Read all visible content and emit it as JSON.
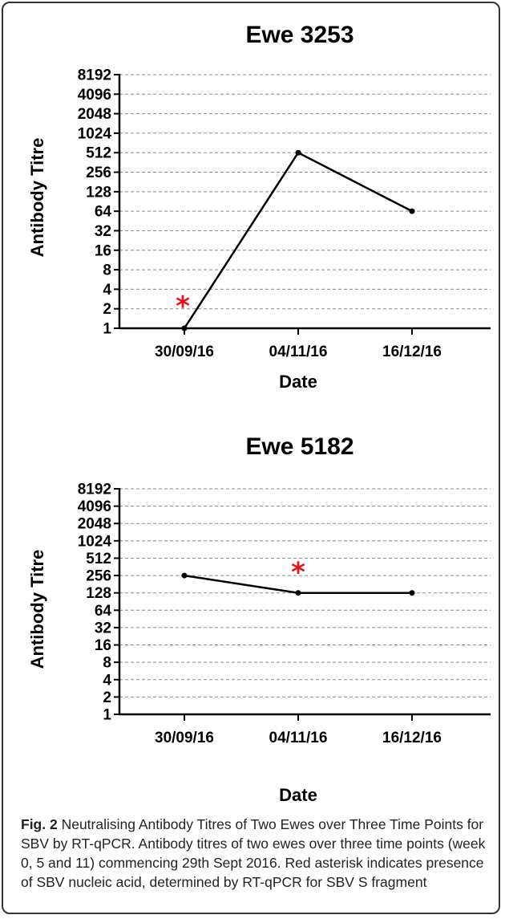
{
  "chart_data": [
    {
      "type": "line",
      "title": "Ewe 3253",
      "xlabel": "Date",
      "ylabel": "Antibody Titre",
      "yscale": "log2",
      "y_ticks": [
        1,
        2,
        4,
        8,
        16,
        32,
        64,
        128,
        256,
        512,
        1024,
        2048,
        4096,
        8192
      ],
      "y_tick_labels": [
        "1",
        "2",
        "4",
        "8",
        "16",
        "32",
        "64",
        "128",
        "256",
        "512",
        "1024",
        "2048",
        "4096",
        "8192"
      ],
      "ylim": [
        1,
        8192
      ],
      "categories": [
        "30/09/16",
        "04/11/16",
        "16/12/16"
      ],
      "values": [
        1,
        512,
        64
      ],
      "annotations": [
        {
          "text": "*",
          "category": "30/09/16",
          "meaning": "SBV nucleic acid present"
        }
      ],
      "grid": "horizontal dashed",
      "colors": {
        "line": "#000000",
        "asterisk": "#e8141c",
        "grid": "#888888"
      }
    },
    {
      "type": "line",
      "title": "Ewe 5182",
      "xlabel": "Date",
      "ylabel": "Antibody Titre",
      "yscale": "log2",
      "y_ticks": [
        1,
        2,
        4,
        8,
        16,
        32,
        64,
        128,
        256,
        512,
        1024,
        2048,
        4096,
        8192
      ],
      "y_tick_labels": [
        "1",
        "2",
        "4",
        "8",
        "16",
        "32",
        "64",
        "128",
        "256",
        "512",
        "1024",
        "2048",
        "4096",
        "8192"
      ],
      "ylim": [
        1,
        8192
      ],
      "categories": [
        "30/09/16",
        "04/11/16",
        "16/12/16"
      ],
      "values": [
        256,
        128,
        128
      ],
      "annotations": [
        {
          "text": "*",
          "category": "04/11/16",
          "meaning": "SBV nucleic acid present"
        }
      ],
      "grid": "horizontal dashed",
      "colors": {
        "line": "#000000",
        "asterisk": "#e8141c",
        "grid": "#888888"
      }
    }
  ],
  "caption": {
    "fig_label": "Fig. 2",
    "title": "Neutralising Antibody Titres of Two Ewes over Three Time Points for SBV by RT-qPCR.",
    "body": "Antibody titres of two ewes over three time points (week 0, 5 and 11) commencing 29th Sept 2016. Red asterisk indicates presence of SBV nucleic acid, determined by RT-qPCR for SBV S fragment"
  }
}
